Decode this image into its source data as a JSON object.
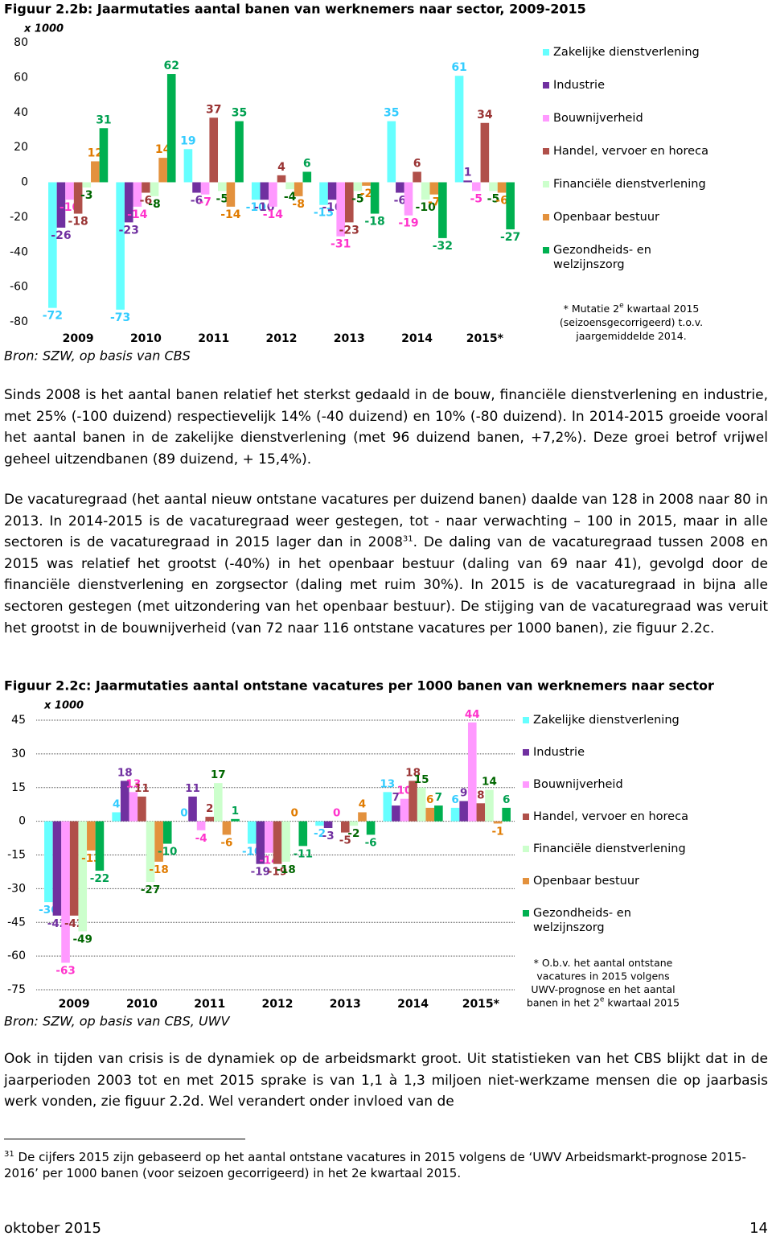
{
  "chart_data": [
    {
      "type": "bar",
      "title": "Figuur 2.2b: Jaarmutaties aantal banen van werknemers naar sector, 2009-2015",
      "unit": "x 1000",
      "source": "Bron: SZW, op basis van CBS",
      "note": [
        [
          "* Mutatie 2",
          "e",
          " kwartaal 2015"
        ],
        [
          "(seizoensgecorrigeerd) t.o.v."
        ],
        [
          "jaargemiddelde 2014."
        ]
      ],
      "categories": [
        "2009",
        "2010",
        "2011",
        "2012",
        "2013",
        "2014",
        "2015*"
      ],
      "ylim": [
        -80,
        80
      ],
      "yticks": [
        -80,
        -60,
        -40,
        -20,
        0,
        20,
        40,
        60,
        80
      ],
      "grid": false,
      "series": [
        {
          "name": "Zakelijke dienstverlening",
          "color": "#66ffff",
          "label_color": "#33ccff",
          "values": [
            -72,
            -73,
            19,
            -10,
            -13,
            35,
            61
          ]
        },
        {
          "name": "Industrie",
          "color": "#7030a0",
          "label_color": "#7030a0",
          "values": [
            -26,
            -23,
            -6,
            -10,
            -10,
            -6,
            1
          ]
        },
        {
          "name": "Bouwnijverheid",
          "color": "#ff99ff",
          "label_color": "#ff33cc",
          "values": [
            -10,
            -14,
            -7,
            -14,
            -31,
            -19,
            -5
          ]
        },
        {
          "name": "Handel, vervoer en horeca",
          "color": "#b0504a",
          "label_color": "#993333",
          "values": [
            -18,
            -6,
            37,
            4,
            -23,
            6,
            34
          ]
        },
        {
          "name": "Financiële dienstverlening",
          "color": "#ccffcc",
          "label_color": "#006600",
          "values": [
            -3,
            -8,
            -5,
            -4,
            -5,
            -10,
            -5
          ]
        },
        {
          "name": "Openbaar bestuur",
          "color": "#e3913d",
          "label_color": "#e07b00",
          "values": [
            12,
            14,
            -14,
            -8,
            -2,
            -7,
            -6
          ]
        },
        {
          "name": "Gezondheids- en welzijnszorg",
          "color": "#00b050",
          "label_color": "#00a050",
          "values": [
            31,
            62,
            35,
            6,
            -18,
            -32,
            -27
          ]
        }
      ]
    },
    {
      "type": "bar",
      "title": "Figuur 2.2c: Jaarmutaties aantal ontstane vacatures per 1000 banen van werknemers naar sector",
      "unit": "x 1000",
      "source": "Bron: SZW, op basis van CBS, UWV",
      "note": [
        [
          "* O.b.v. het aantal ontstane"
        ],
        [
          "vacatures in 2015 volgens"
        ],
        [
          "UWV-prognose en het aantal"
        ],
        [
          "banen in het 2",
          "e",
          " kwartaal 2015"
        ]
      ],
      "categories": [
        "2009",
        "2010",
        "2011",
        "2012",
        "2013",
        "2014",
        "2015*"
      ],
      "ylim": [
        -75,
        45
      ],
      "yticks": [
        -75,
        -60,
        -45,
        -30,
        -15,
        0,
        15,
        30,
        45
      ],
      "grid": true,
      "series": [
        {
          "name": "Zakelijke dienstverlening",
          "color": "#66ffff",
          "label_color": "#33ccff",
          "values": [
            -36,
            4,
            0,
            -10,
            -2,
            13,
            6
          ]
        },
        {
          "name": "Industrie",
          "color": "#7030a0",
          "label_color": "#7030a0",
          "values": [
            -42,
            18,
            11,
            -19,
            -3,
            7,
            9
          ]
        },
        {
          "name": "Bouwnijverheid",
          "color": "#ff99ff",
          "label_color": "#ff33cc",
          "values": [
            -63,
            13,
            -4,
            -14,
            0,
            10,
            44
          ]
        },
        {
          "name": "Handel, vervoer en horeca",
          "color": "#b0504a",
          "label_color": "#993333",
          "values": [
            -42,
            11,
            2,
            -19,
            -5,
            18,
            8
          ]
        },
        {
          "name": "Financiële dienstverlening",
          "color": "#ccffcc",
          "label_color": "#006600",
          "values": [
            -49,
            -27,
            17,
            -18,
            -2,
            15,
            14
          ]
        },
        {
          "name": "Openbaar bestuur",
          "color": "#e3913d",
          "label_color": "#e07b00",
          "values": [
            -13,
            -18,
            -6,
            0,
            4,
            6,
            -1
          ]
        },
        {
          "name": "Gezondheids- en welzijnszorg",
          "color": "#00b050",
          "label_color": "#00a050",
          "values": [
            -22,
            -10,
            1,
            -11,
            -6,
            7,
            6
          ]
        }
      ]
    }
  ],
  "paragraphs": [
    "Sinds 2008 is het aantal banen relatief het sterkst gedaald in de bouw, financiële dienstverlening en industrie, met 25% (-100 duizend) respectievelijk 14% (-40 duizend) en 10% (-80 duizend). In 2014-2015 groeide vooral het aantal banen in de zakelijke dienstverlening (met 96 duizend banen, +7,2%). Deze groei betrof vrijwel geheel uitzendbanen (89 duizend, + 15,4%).",
    [
      "De vacaturegraad (het aantal nieuw ontstane vacatures per duizend banen) daalde van 128 in 2008 naar 80 in 2013. In 2014-2015 is de vacaturegraad weer gestegen, tot - naar verwachting – 100 in 2015, maar in alle sectoren is de vacaturegraad in 2015 lager dan in 2008",
      "31",
      ". De daling van de vacaturegraad tussen 2008 en 2015 was relatief het grootst (-40%) in het openbaar bestuur (daling van 69 naar 41), gevolgd door de financiële dienstverlening en zorgsector (daling met ruim 30%). In 2015 is de vacaturegraad in bijna alle sectoren gestegen (met uitzondering van het openbaar bestuur). De stijging van de vacaturegraad was veruit het grootst in de bouwnijverheid (van 72 naar 116 ontstane vacatures per 1000 banen), zie figuur 2.2c."
    ],
    "Ook in tijden van crisis is de dynamiek op de arbeidsmarkt groot. Uit statistieken van het CBS blijkt dat in de jaarperioden 2003 tot en met 2015 sprake is van 1,1 à 1,3 miljoen niet-werkzame mensen die op jaarbasis werk vonden, zie figuur 2.2d. Wel verandert onder invloed van de"
  ],
  "footnote": {
    "number": "31",
    "text": "De cijfers 2015 zijn gebaseerd op het aantal ontstane vacatures in 2015 volgens de ‘UWV Arbeidsmarkt-prognose 2015-2016’ per 1000 banen (voor seizoen gecorrigeerd) in het 2e kwartaal 2015."
  },
  "footer": {
    "date": "oktober 2015",
    "page": "14"
  }
}
